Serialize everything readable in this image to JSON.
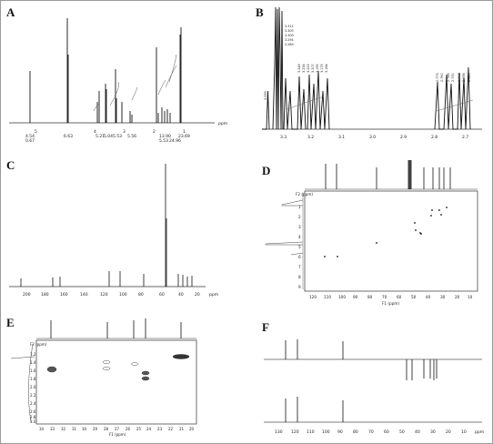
{
  "figure": {
    "panels": [
      {
        "label": "A",
        "ppm_unit": "ppm",
        "tick_labels": [
          "5",
          "4",
          "3",
          "2",
          "1"
        ],
        "integrals": [
          "4.54",
          "0.67",
          "6.63",
          "5.21",
          "5.04",
          "5.53",
          "5.56",
          "13.90",
          "5.53",
          "24.96",
          "23.69"
        ]
      },
      {
        "label": "B",
        "axis_ticks": [
          "3.3",
          "3.2",
          "3.1",
          "3.0",
          "2.9",
          "2.8",
          "2.7"
        ],
        "peak_labels": [
          "3.339",
          "3.311",
          "3.305",
          "3.300",
          "3.294",
          "3.289",
          "3.246",
          "3.234",
          "3.223",
          "3.207",
          "3.195",
          "3.175",
          "3.164",
          "2.775",
          "2.760",
          "2.746",
          "2.731",
          "2.716",
          "2.698",
          "2.685"
        ]
      },
      {
        "label": "C",
        "ppm_unit": "ppm",
        "axis_ticks": [
          "200",
          "180",
          "160",
          "140",
          "120",
          "100",
          "80",
          "60",
          "40",
          "20"
        ]
      },
      {
        "label": "D",
        "f2_label": "F2\n(ppm)",
        "f1_label": "F1 (ppm)",
        "y_ticks": [
          "1",
          "2",
          "3",
          "4",
          "5",
          "6",
          "7",
          "8",
          "9"
        ],
        "x_ticks": [
          "120",
          "110",
          "100",
          "90",
          "80",
          "70",
          "60",
          "50",
          "40",
          "30",
          "20",
          "10"
        ]
      },
      {
        "label": "E",
        "f2_label": "F2\n(ppm)",
        "f1_label": "F1 (ppm)",
        "y_ticks": [
          "1.2",
          "1.4",
          "1.6",
          "1.8",
          "2.0",
          "2.2",
          "2.4",
          "2.6",
          "2.8",
          "3.0"
        ],
        "x_ticks": [
          "34",
          "33",
          "32",
          "31",
          "30",
          "29",
          "28",
          "27",
          "26",
          "25",
          "24",
          "23",
          "22",
          "21",
          "20"
        ]
      },
      {
        "label": "F",
        "axis_ticks": [
          "130",
          "120",
          "110",
          "100",
          "90",
          "80",
          "70",
          "60",
          "50",
          "40",
          "30",
          "20",
          "10"
        ],
        "ppm_unit": "ppm"
      }
    ]
  }
}
